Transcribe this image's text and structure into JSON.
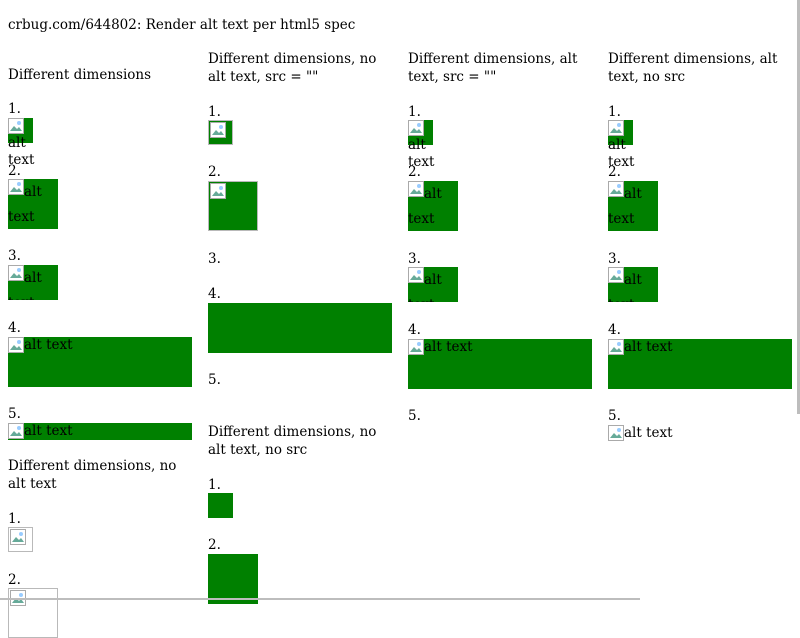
{
  "page": {
    "title": "crbug.com/644802: Render alt text per html5 spec",
    "alt_text": "alt text",
    "alt_line1": "alt",
    "alt_line2": "text"
  },
  "sections": {
    "dd": "Different dimensions",
    "dd_no_alt_empty_src": "Different dimensions, no alt text, src = \"\"",
    "dd_alt_empty_src": "Different dimensions, alt text, src = \"\"",
    "dd_alt_no_src": "Different dimensions, alt text, no src",
    "dd_no_alt_no_src": "Different dimensions, no alt text",
    "dd_no_alt_no_src_2": "Different dimensions, no alt text, no src"
  },
  "numbers": [
    "1.",
    "2.",
    "3.",
    "4.",
    "5."
  ],
  "colors": {
    "box": "#008000",
    "border": "#b9b9b9",
    "icon": "broken-image-icon"
  }
}
